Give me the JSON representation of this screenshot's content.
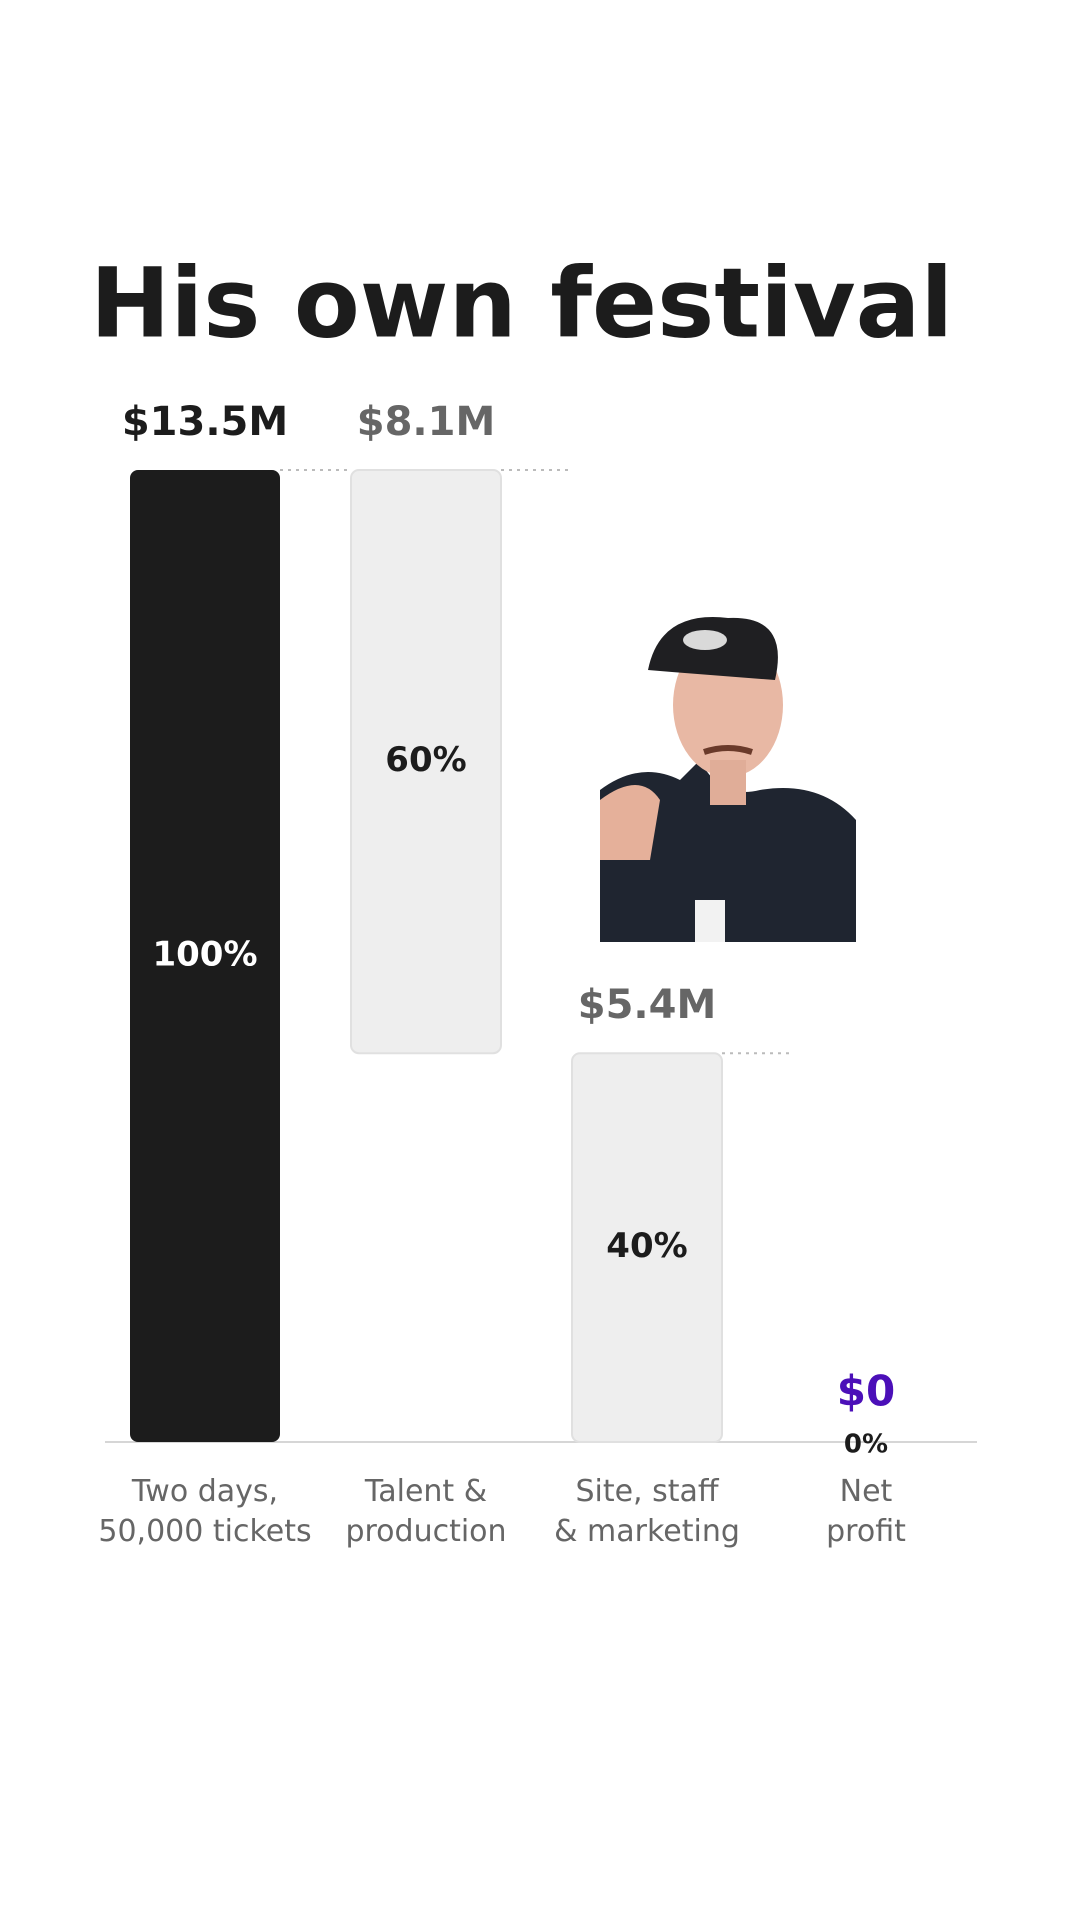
{
  "chart_data": {
    "type": "waterfall",
    "title": "His own festival",
    "categories": [
      "Two days,\n50,000 tickets",
      "Talent &\nproduction",
      "Site, staff\n& marketing",
      "Net\nprofit"
    ],
    "measures": [
      "total",
      "decrease",
      "decrease",
      "total"
    ],
    "values": [
      13.5,
      8.1,
      5.4,
      0
    ],
    "value_labels": [
      "$13.5M",
      "$8.1M",
      "$5.4M",
      "$0"
    ],
    "share_values": [
      100,
      60,
      40,
      0
    ],
    "share_labels": [
      "100%",
      "60%",
      "40%",
      "0%"
    ],
    "colors": [
      "#1c1c1c",
      "#eeeeee",
      "#eeeeee",
      "#4b0fb8"
    ],
    "label_colors": [
      "#1c1c1c",
      "#666666",
      "#666666",
      "#4b0fb8"
    ],
    "ylim": [
      0,
      13.5
    ]
  }
}
